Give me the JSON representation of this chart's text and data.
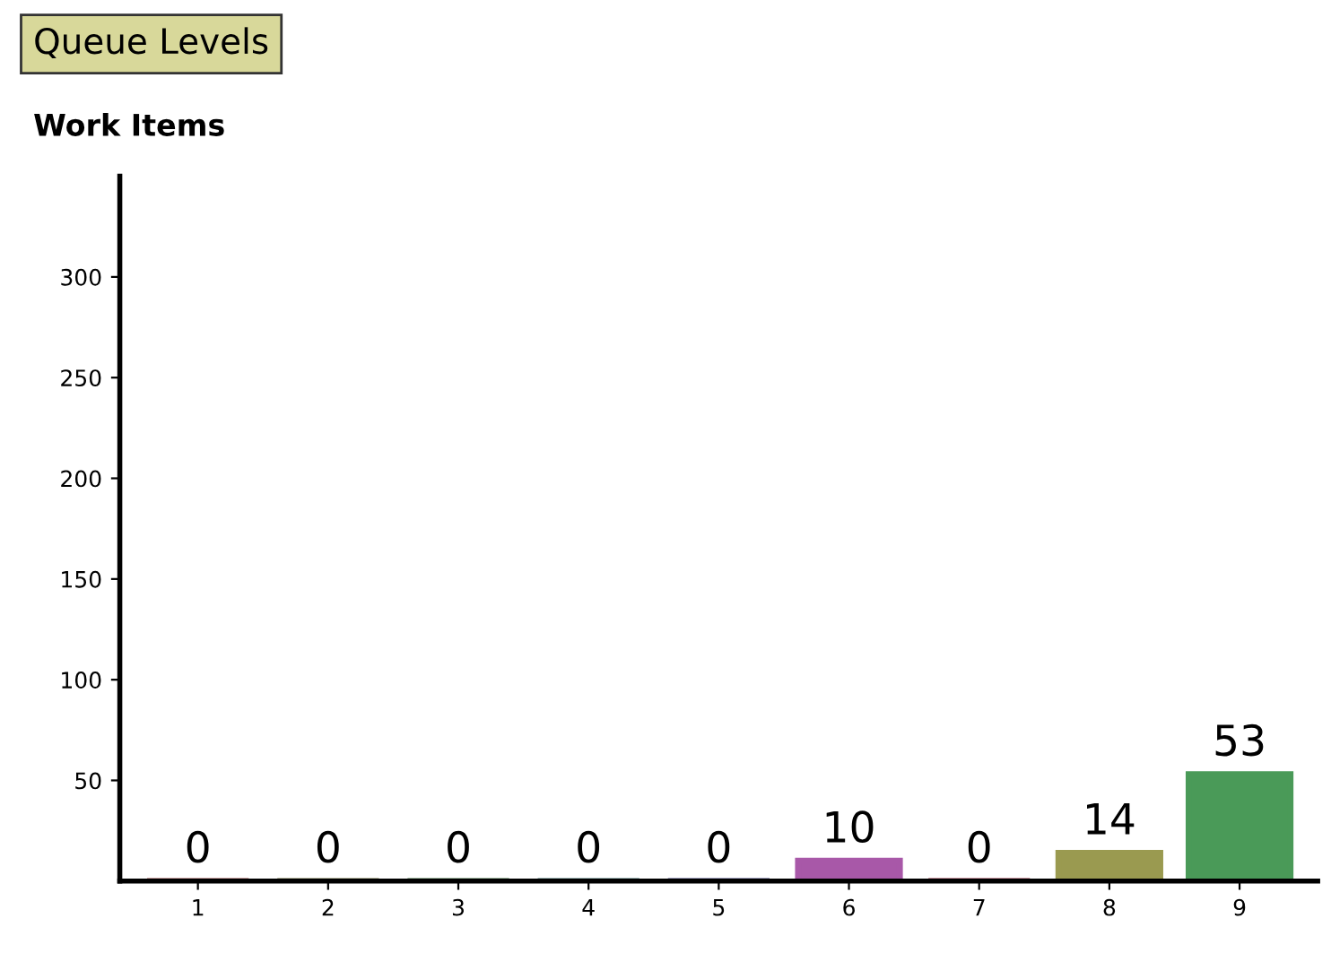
{
  "chart_data": {
    "type": "bar",
    "title": "Queue Levels",
    "ylabel": "Work Items",
    "categories": [
      "1",
      "2",
      "3",
      "4",
      "5",
      "6",
      "7",
      "8",
      "9"
    ],
    "values": [
      0,
      0,
      0,
      0,
      0,
      10,
      0,
      14,
      53
    ],
    "colors": [
      "#c08888",
      "#a8a888",
      "#88a888",
      "#88a8a8",
      "#8888b0",
      "#a858a8",
      "#c07888",
      "#9a9a50",
      "#4a9a58"
    ],
    "ylim": [
      0,
      350
    ],
    "yticks": [
      50,
      100,
      150,
      200,
      250,
      300
    ],
    "grid": false,
    "data_labels": true
  }
}
